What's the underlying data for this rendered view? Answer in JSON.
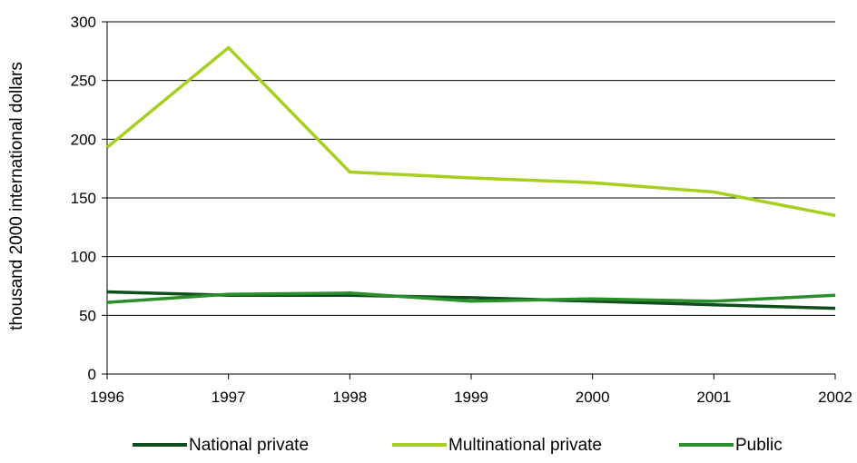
{
  "chart_data": {
    "type": "line",
    "x": [
      "1996",
      "1997",
      "1998",
      "1999",
      "2000",
      "2001",
      "2002"
    ],
    "series": [
      {
        "name": "National private",
        "color": "#0f4d1d",
        "values": [
          70,
          67,
          67,
          65,
          62,
          59,
          56
        ]
      },
      {
        "name": "Multinational private",
        "color": "#a6d01f",
        "values": [
          193,
          278,
          172,
          167,
          163,
          155,
          135
        ]
      },
      {
        "name": "Public",
        "color": "#2a8f2a",
        "values": [
          61,
          68,
          69,
          62,
          64,
          62,
          67
        ]
      }
    ],
    "ylabel": "thousand 2000 international dollars",
    "xlabel": "",
    "ylim": [
      0,
      300
    ],
    "yticks": [
      "0",
      "50",
      "100",
      "150",
      "200",
      "250",
      "300"
    ],
    "grid": "horizontal",
    "legend_position": "bottom"
  }
}
